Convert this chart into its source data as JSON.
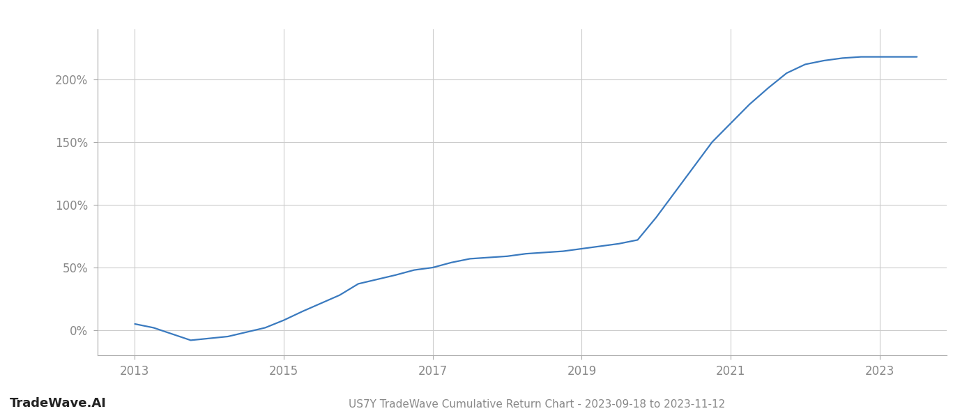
{
  "title": "US7Y TradeWave Cumulative Return Chart - 2023-09-18 to 2023-11-12",
  "watermark": "TradeWave.AI",
  "line_color": "#3a7abf",
  "background_color": "#ffffff",
  "grid_color": "#cccccc",
  "x_years": [
    2013.0,
    2013.25,
    2013.75,
    2014.25,
    2014.75,
    2015.0,
    2015.25,
    2015.75,
    2016.0,
    2016.5,
    2016.75,
    2017.0,
    2017.25,
    2017.5,
    2017.75,
    2018.0,
    2018.25,
    2018.5,
    2018.75,
    2019.0,
    2019.25,
    2019.5,
    2019.75,
    2020.0,
    2020.25,
    2020.5,
    2020.75,
    2021.0,
    2021.25,
    2021.5,
    2021.75,
    2022.0,
    2022.25,
    2022.5,
    2022.75,
    2023.0,
    2023.5
  ],
  "y_values": [
    5,
    2,
    -8,
    -5,
    2,
    8,
    15,
    28,
    37,
    44,
    48,
    50,
    54,
    57,
    58,
    59,
    61,
    62,
    63,
    65,
    67,
    69,
    72,
    90,
    110,
    130,
    150,
    165,
    180,
    193,
    205,
    212,
    215,
    217,
    218,
    218,
    218
  ],
  "xlim": [
    2012.5,
    2023.9
  ],
  "ylim": [
    -20,
    240
  ],
  "yticks": [
    0,
    50,
    100,
    150,
    200
  ],
  "xticks": [
    2013,
    2015,
    2017,
    2019,
    2021,
    2023
  ],
  "line_width": 1.6,
  "tick_label_color": "#888888",
  "axis_label_fontsize": 12,
  "watermark_fontsize": 13,
  "title_fontsize": 11
}
